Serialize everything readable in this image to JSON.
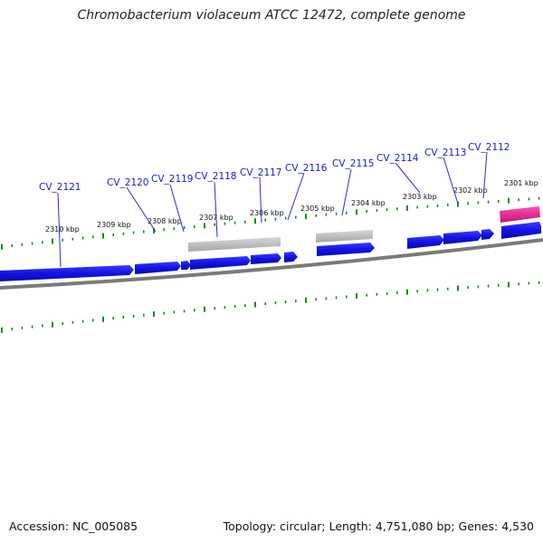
{
  "title": "Chromobacterium violaceum ATCC 12472, complete genome",
  "footer": {
    "accession": "Accession: NC_005085",
    "summary": "Topology: circular; Length: 4,751,080 bp; Genes: 4,530"
  },
  "colors": {
    "forward_gene": "#1010e0",
    "reverse_gene": "#b4b4b4",
    "rna_gene": "#e0188c",
    "backbone": "#7a7a7a",
    "tick": "#1b8a1b",
    "gene_label": "#1a1acc",
    "leader": "#2a2ad0"
  },
  "kbp_markers": [
    {
      "label": "2310 kbp"
    },
    {
      "label": "2309 kbp"
    },
    {
      "label": "2308 kbp"
    },
    {
      "label": "2307 kbp"
    },
    {
      "label": "2306 kbp"
    },
    {
      "label": "2305 kbp"
    },
    {
      "label": "2304 kbp"
    },
    {
      "label": "2303 kbp"
    },
    {
      "label": "2302 kbp"
    },
    {
      "label": "2301 kbp"
    }
  ],
  "gene_labels": [
    {
      "label": "CV_2121"
    },
    {
      "label": "CV_2120"
    },
    {
      "label": "CV_2119"
    },
    {
      "label": "CV_2118"
    },
    {
      "label": "CV_2117"
    },
    {
      "label": "CV_2116"
    },
    {
      "label": "CV_2115"
    },
    {
      "label": "CV_2114"
    },
    {
      "label": "CV_2113"
    },
    {
      "label": "CV_2112"
    }
  ]
}
